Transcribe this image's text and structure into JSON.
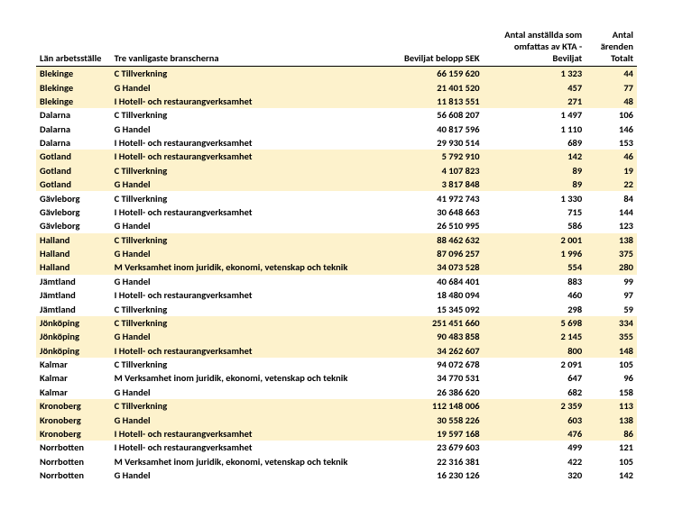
{
  "columns": [
    "Län arbetsställe",
    "Tre vanligaste branscherna",
    "Beviljat belopp SEK",
    "Antal anställda som omfattas av KTA - Beviljat",
    "Antal ärenden Totalt"
  ],
  "highlight_color": "#fdf2cc",
  "rows": [
    {
      "hl": true,
      "lan": "Blekinge",
      "bransch": "C Tillverkning",
      "belopp": "66 159 620",
      "anst": "1 323",
      "arenden": "44"
    },
    {
      "hl": true,
      "lan": "Blekinge",
      "bransch": "G Handel",
      "belopp": "21 401 520",
      "anst": "457",
      "arenden": "77"
    },
    {
      "hl": true,
      "lan": "Blekinge",
      "bransch": "I Hotell- och restaurangverksamhet",
      "belopp": "11 813 551",
      "anst": "271",
      "arenden": "48"
    },
    {
      "hl": false,
      "lan": "Dalarna",
      "bransch": "C Tillverkning",
      "belopp": "56 608 207",
      "anst": "1 497",
      "arenden": "106"
    },
    {
      "hl": false,
      "lan": "Dalarna",
      "bransch": "G Handel",
      "belopp": "40 817 596",
      "anst": "1 110",
      "arenden": "146"
    },
    {
      "hl": false,
      "lan": "Dalarna",
      "bransch": "I Hotell- och restaurangverksamhet",
      "belopp": "29 930 514",
      "anst": "689",
      "arenden": "153"
    },
    {
      "hl": true,
      "lan": "Gotland",
      "bransch": "I Hotell- och restaurangverksamhet",
      "belopp": "5 792 910",
      "anst": "142",
      "arenden": "46"
    },
    {
      "hl": true,
      "lan": "Gotland",
      "bransch": "C Tillverkning",
      "belopp": "4 107 823",
      "anst": "89",
      "arenden": "19"
    },
    {
      "hl": true,
      "lan": "Gotland",
      "bransch": "G Handel",
      "belopp": "3 817 848",
      "anst": "89",
      "arenden": "22"
    },
    {
      "hl": false,
      "lan": "Gävleborg",
      "bransch": "C Tillverkning",
      "belopp": "41 972 743",
      "anst": "1 330",
      "arenden": "84"
    },
    {
      "hl": false,
      "lan": "Gävleborg",
      "bransch": "I Hotell- och restaurangverksamhet",
      "belopp": "30 648 663",
      "anst": "715",
      "arenden": "144"
    },
    {
      "hl": false,
      "lan": "Gävleborg",
      "bransch": "G Handel",
      "belopp": "26 510 995",
      "anst": "586",
      "arenden": "123"
    },
    {
      "hl": true,
      "lan": "Halland",
      "bransch": "C Tillverkning",
      "belopp": "88 462 632",
      "anst": "2 001",
      "arenden": "138"
    },
    {
      "hl": true,
      "lan": "Halland",
      "bransch": "G Handel",
      "belopp": "87 096 257",
      "anst": "1 996",
      "arenden": "375"
    },
    {
      "hl": true,
      "lan": "Halland",
      "bransch": "M Verksamhet inom juridik, ekonomi, vetenskap och teknik",
      "belopp": "34 073 528",
      "anst": "554",
      "arenden": "280"
    },
    {
      "hl": false,
      "lan": "Jämtland",
      "bransch": "G Handel",
      "belopp": "40 684 401",
      "anst": "883",
      "arenden": "99"
    },
    {
      "hl": false,
      "lan": "Jämtland",
      "bransch": "I Hotell- och restaurangverksamhet",
      "belopp": "18 480 094",
      "anst": "460",
      "arenden": "97"
    },
    {
      "hl": false,
      "lan": "Jämtland",
      "bransch": "C Tillverkning",
      "belopp": "15 345 092",
      "anst": "298",
      "arenden": "59"
    },
    {
      "hl": true,
      "lan": "Jönköping",
      "bransch": "C Tillverkning",
      "belopp": "251 451 660",
      "anst": "5 698",
      "arenden": "334"
    },
    {
      "hl": true,
      "lan": "Jönköping",
      "bransch": "G Handel",
      "belopp": "90 483 858",
      "anst": "2 145",
      "arenden": "355"
    },
    {
      "hl": true,
      "lan": "Jönköping",
      "bransch": "I Hotell- och restaurangverksamhet",
      "belopp": "34 262 607",
      "anst": "800",
      "arenden": "148"
    },
    {
      "hl": false,
      "lan": "Kalmar",
      "bransch": "C Tillverkning",
      "belopp": "94 072 678",
      "anst": "2 091",
      "arenden": "105"
    },
    {
      "hl": false,
      "lan": "Kalmar",
      "bransch": "M Verksamhet inom juridik, ekonomi, vetenskap och teknik",
      "belopp": "34 770 531",
      "anst": "647",
      "arenden": "96"
    },
    {
      "hl": false,
      "lan": "Kalmar",
      "bransch": "G Handel",
      "belopp": "26 386 620",
      "anst": "682",
      "arenden": "158"
    },
    {
      "hl": true,
      "lan": "Kronoberg",
      "bransch": "C Tillverkning",
      "belopp": "112 148 006",
      "anst": "2 359",
      "arenden": "113"
    },
    {
      "hl": true,
      "lan": "Kronoberg",
      "bransch": "G Handel",
      "belopp": "30 558 226",
      "anst": "603",
      "arenden": "138"
    },
    {
      "hl": true,
      "lan": "Kronoberg",
      "bransch": "I Hotell- och restaurangverksamhet",
      "belopp": "19 597 168",
      "anst": "476",
      "arenden": "86"
    },
    {
      "hl": false,
      "lan": "Norrbotten",
      "bransch": "I Hotell- och restaurangverksamhet",
      "belopp": "23 679 603",
      "anst": "499",
      "arenden": "121"
    },
    {
      "hl": false,
      "lan": "Norrbotten",
      "bransch": "M Verksamhet inom juridik, ekonomi, vetenskap och teknik",
      "belopp": "22 316 381",
      "anst": "422",
      "arenden": "105"
    },
    {
      "hl": false,
      "lan": "Norrbotten",
      "bransch": "G Handel",
      "belopp": "16 230 126",
      "anst": "320",
      "arenden": "142"
    }
  ]
}
